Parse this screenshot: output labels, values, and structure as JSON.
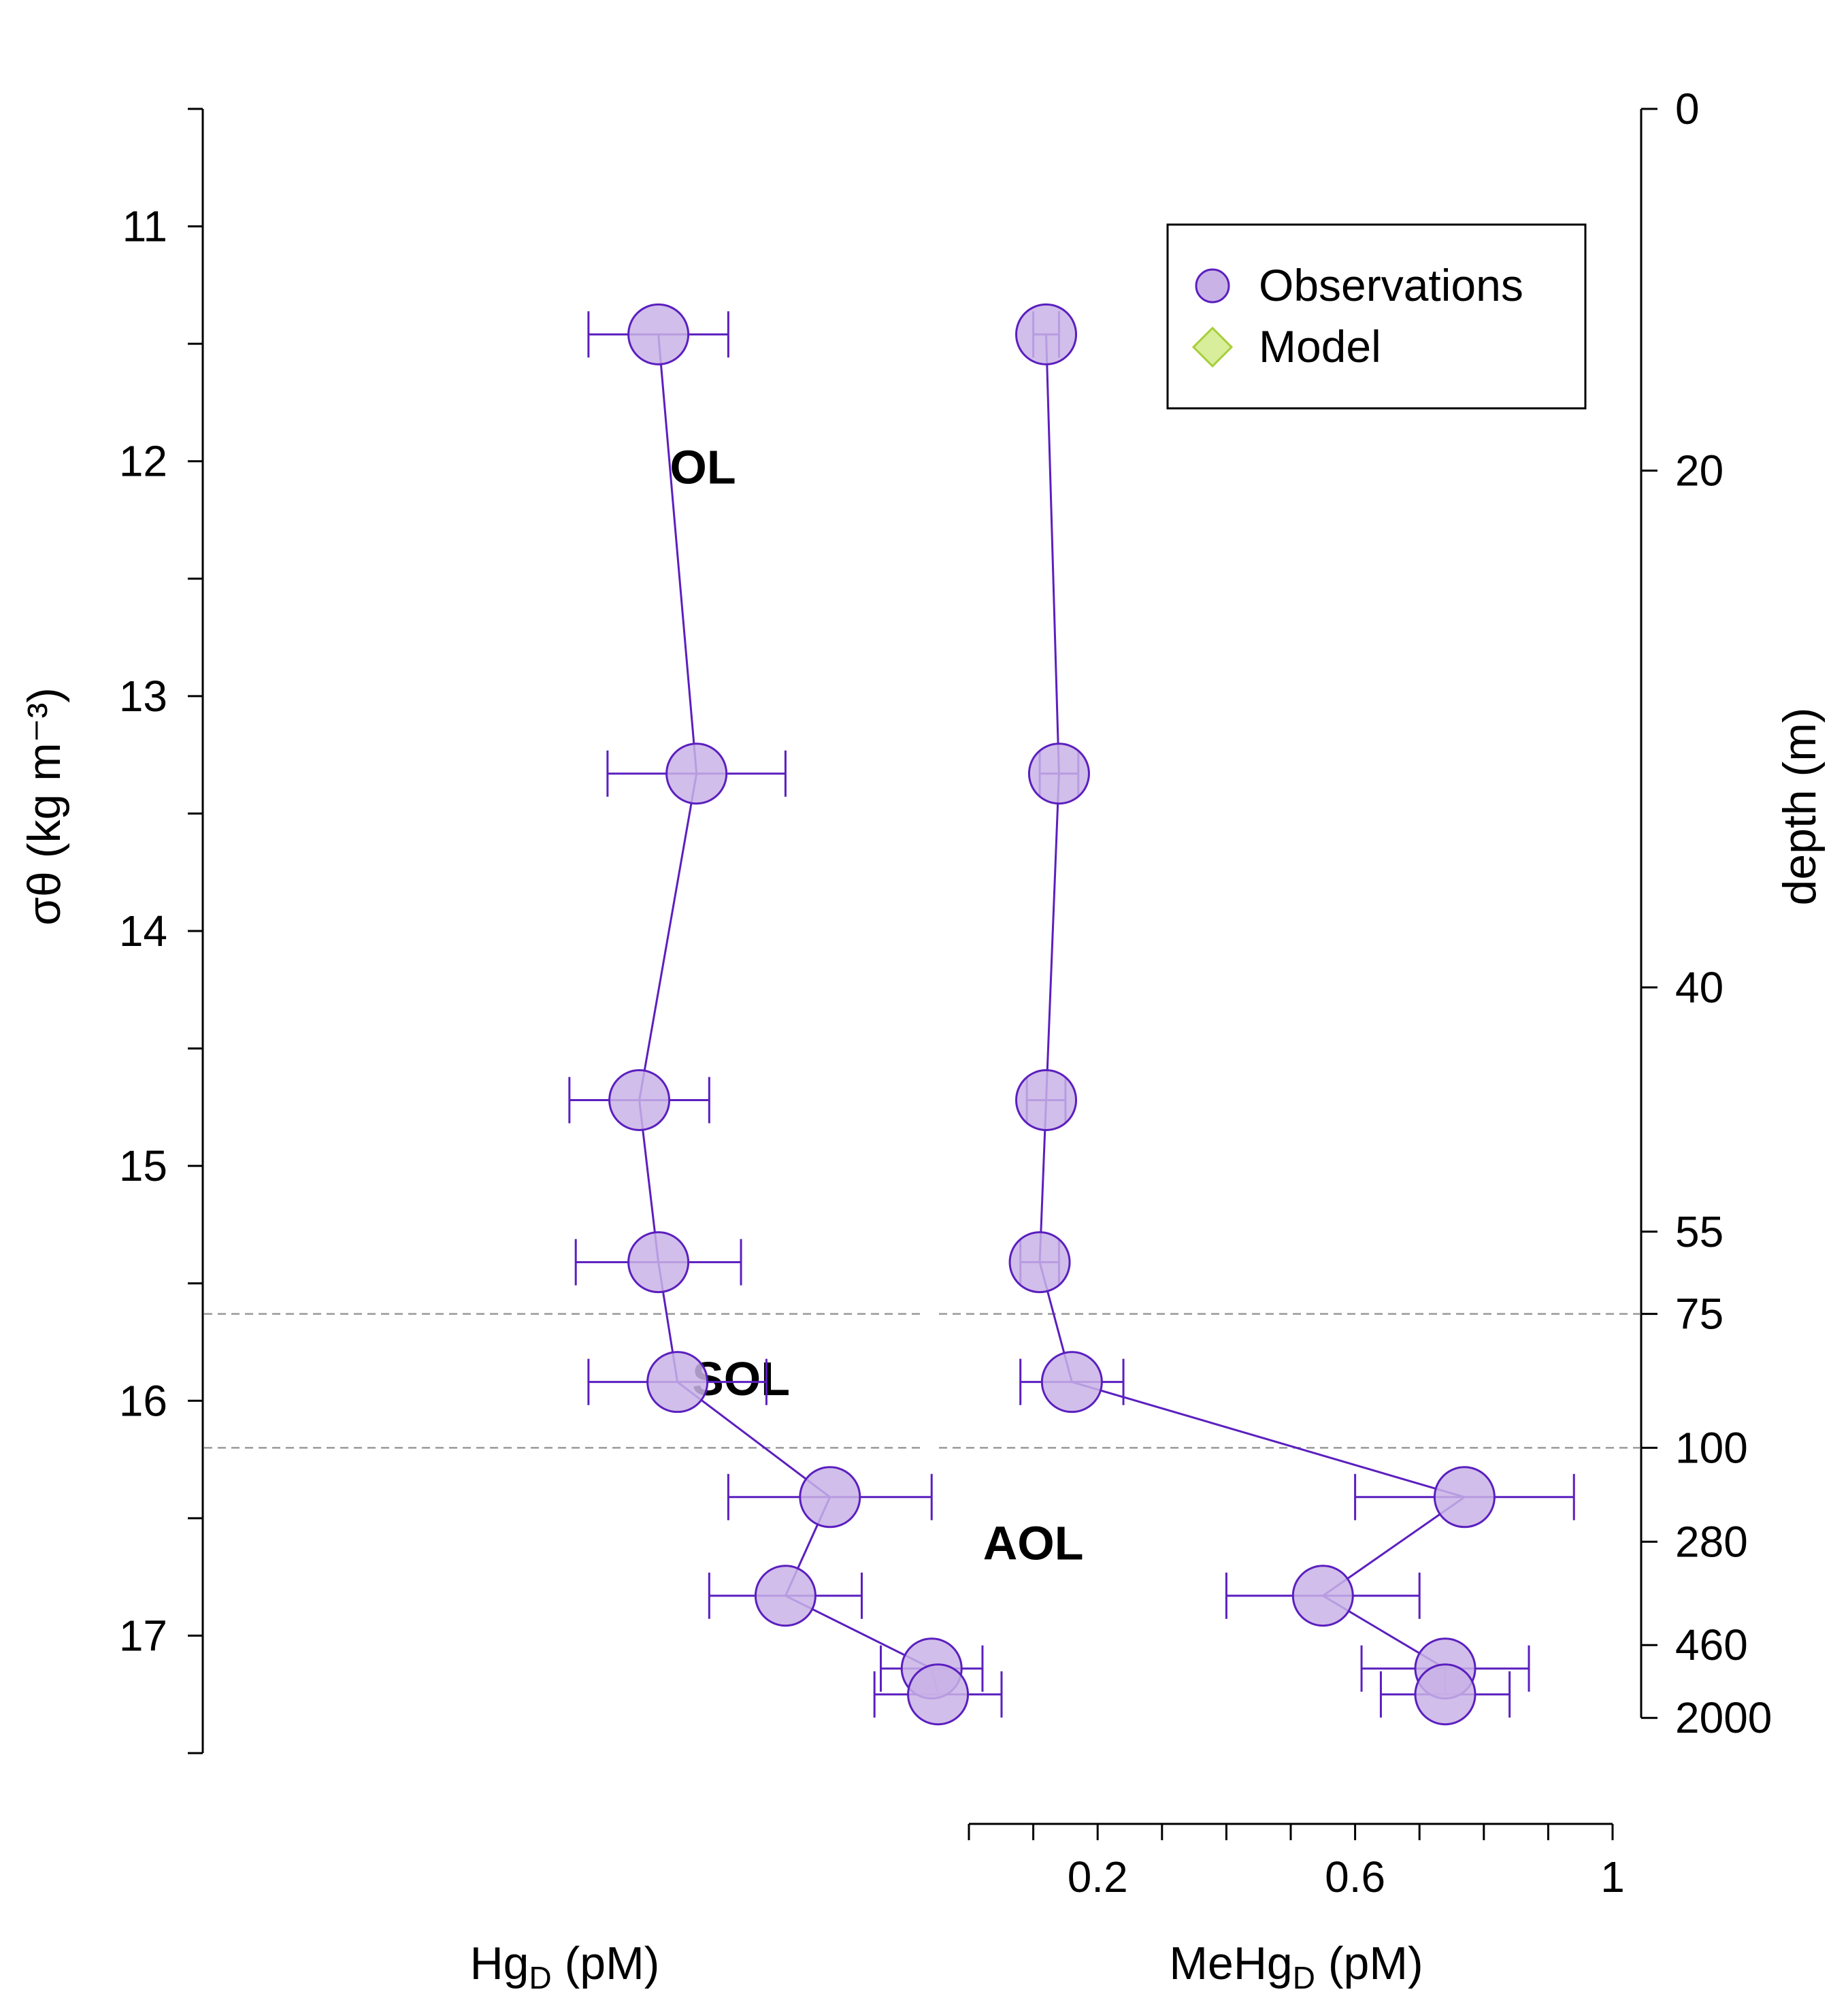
{
  "chart_data": {
    "type": "scatter",
    "ylabel": "σθ (kg m⁻³)",
    "y_right_label": "depth (m)",
    "ylim": [
      10.5,
      17.5
    ],
    "y_reversed": true,
    "y_ticks": [
      11,
      12,
      13,
      14,
      15,
      16,
      17
    ],
    "y_ticks_minor": [
      10.5,
      11.5,
      12.5,
      13.5,
      14.5,
      15.5,
      16.5,
      17.5
    ],
    "depth_axis": {
      "ticks": [
        {
          "label": "0",
          "sigma": 10.5
        },
        {
          "label": "20",
          "sigma": 12.04
        },
        {
          "label": "40",
          "sigma": 14.24
        },
        {
          "label": "55",
          "sigma": 15.28
        },
        {
          "label": "75",
          "sigma": 15.63
        },
        {
          "label": "100",
          "sigma": 16.2
        },
        {
          "label": "280",
          "sigma": 16.6
        },
        {
          "label": "460",
          "sigma": 17.04
        },
        {
          "label": "2000",
          "sigma": 17.35
        }
      ]
    },
    "layer_boundaries": [
      15.63,
      16.2
    ],
    "layer_labels": [
      {
        "text": "OL",
        "panel": "hg",
        "x_frac": 0.5,
        "sigma": 12.02
      },
      {
        "text": "SOL",
        "panel": "hg",
        "x_frac": 0.56,
        "sigma": 15.9
      },
      {
        "text": "AOL",
        "panel": "mehg",
        "x_frac": 0.1,
        "sigma": 16.6
      }
    ],
    "panels": [
      {
        "id": "hg",
        "xlabel": "Hg",
        "xlabel_sub": "D",
        "xlabel_unit": " (pM)",
        "show_x_axis": false,
        "xlim": [
          0,
          1
        ],
        "series": [
          {
            "name": "Observations",
            "x": [
              0.43,
              0.49,
              0.4,
              0.43,
              0.46,
              0.7,
              0.63,
              0.86,
              0.87
            ],
            "x_err": [
              0.11,
              0.14,
              0.11,
              0.13,
              0.14,
              0.16,
              0.12,
              0.08,
              0.1
            ],
            "y": [
              11.46,
              13.33,
              14.72,
              15.41,
              15.92,
              16.41,
              16.83,
              17.14,
              17.25
            ]
          }
        ]
      },
      {
        "id": "mehg",
        "xlabel": "MeHg",
        "xlabel_sub": "D",
        "xlabel_unit": " (pM)",
        "show_x_axis": true,
        "xlim": [
          0,
          1
        ],
        "x_ticks": [
          0.2,
          0.6,
          1
        ],
        "x_tick_labels": [
          "0.2",
          "0.6",
          "1"
        ],
        "x_ticks_minor": [
          0,
          0.1,
          0.3,
          0.4,
          0.5,
          0.7,
          0.8,
          0.9
        ],
        "series": [
          {
            "name": "Observations",
            "x": [
              0.12,
              0.14,
              0.12,
              0.11,
              0.16,
              0.77,
              0.55,
              0.74,
              0.74
            ],
            "x_err": [
              0.02,
              0.03,
              0.03,
              0.03,
              0.08,
              0.17,
              0.15,
              0.13,
              0.1
            ],
            "y": [
              11.46,
              13.33,
              14.72,
              15.41,
              15.92,
              16.41,
              16.83,
              17.14,
              17.25
            ]
          }
        ]
      }
    ],
    "legend": {
      "position": "top-right",
      "entries": [
        {
          "label": "Observations",
          "marker": "circle",
          "color": "#5B1FBF",
          "fill": "#C9B3E6"
        },
        {
          "label": "Model",
          "marker": "diamond",
          "color": "#A6CE39",
          "fill": "#D9EE9A"
        }
      ]
    },
    "colors": {
      "marker_stroke": "#5B1FBF",
      "marker_fill": "#C9B3E6",
      "boundary_line": "#999999"
    }
  }
}
